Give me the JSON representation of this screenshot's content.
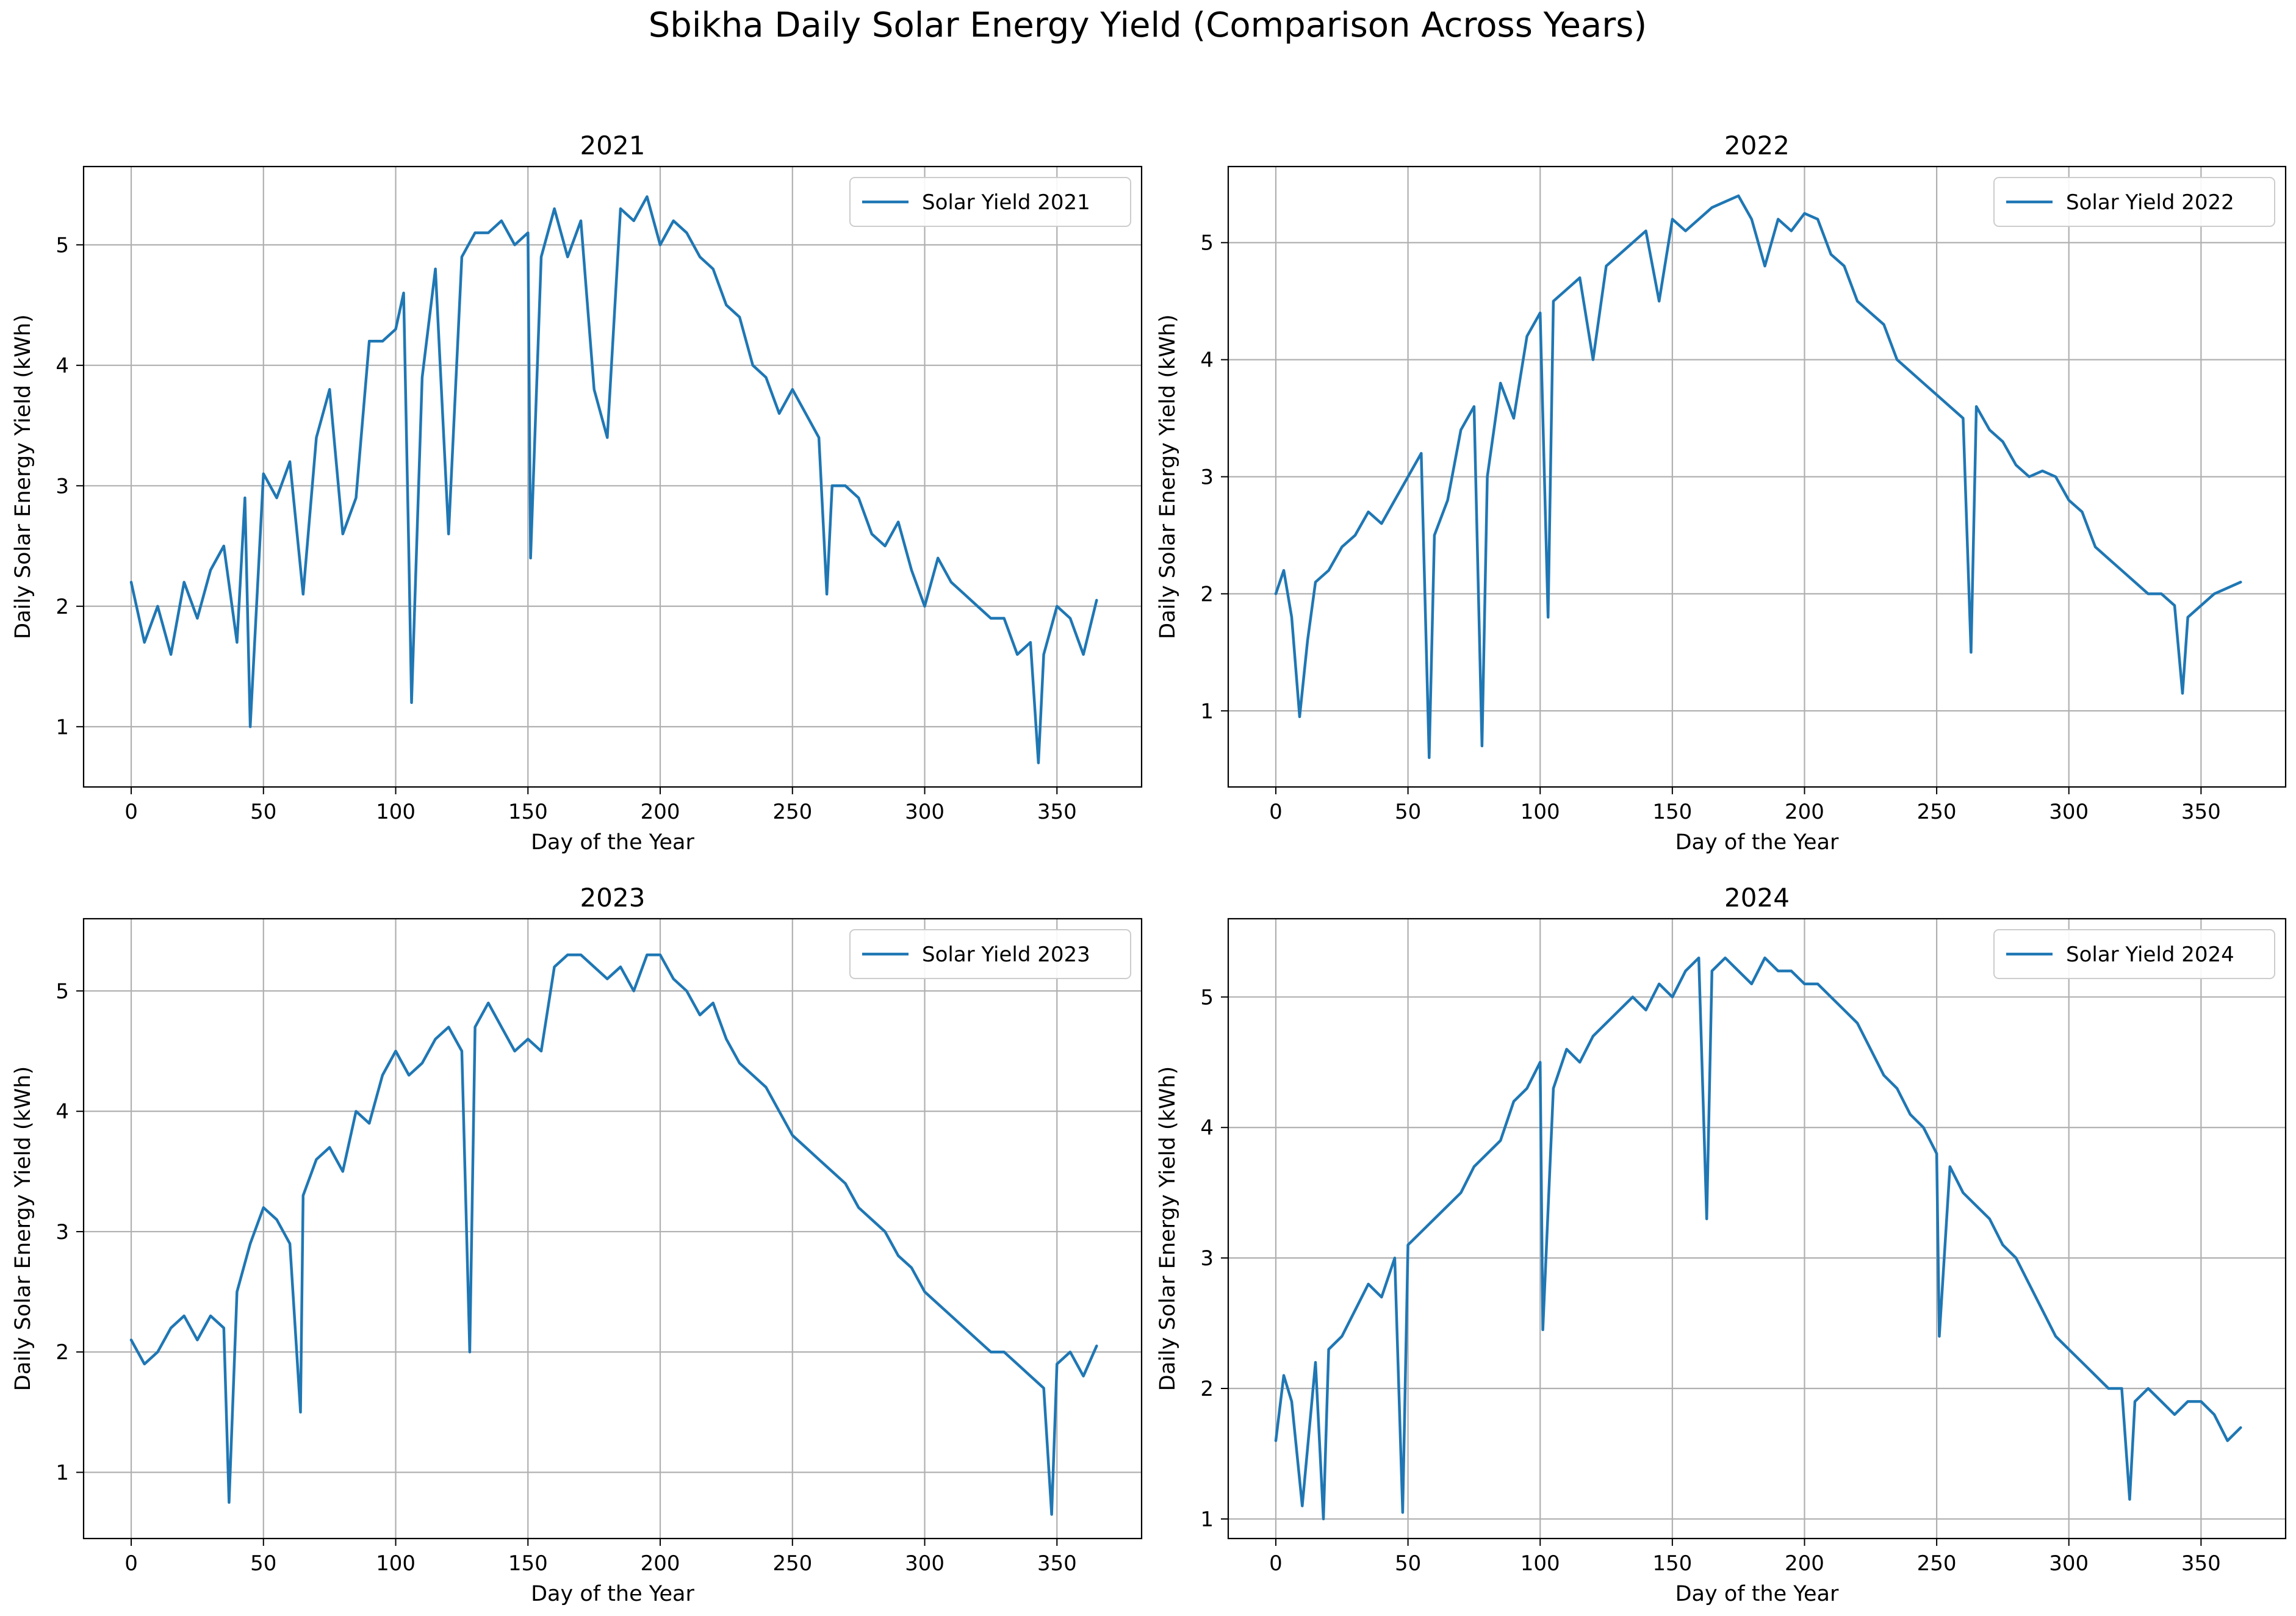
{
  "figure": {
    "suptitle": "Sbikha Daily Solar Energy Yield (Comparison Across Years)",
    "line_color": "#1f77b4",
    "grid_color": "#b0b0b0"
  },
  "chart_data": [
    {
      "type": "line",
      "title": "2021",
      "xlabel": "Day of the Year",
      "ylabel": "Daily Solar Energy Yield (kWh)",
      "xlim": [
        -18,
        382
      ],
      "ylim": [
        0.5,
        5.65
      ],
      "xticks": [
        0,
        50,
        100,
        150,
        200,
        250,
        300,
        350
      ],
      "yticks": [
        1,
        2,
        3,
        4,
        5
      ],
      "grid": true,
      "legend_position": "upper-right",
      "series": [
        {
          "name": "Solar Yield 2021",
          "x": [
            0,
            5,
            10,
            15,
            20,
            25,
            30,
            35,
            40,
            43,
            45,
            50,
            55,
            60,
            65,
            70,
            75,
            80,
            85,
            90,
            95,
            100,
            103,
            105,
            106,
            110,
            115,
            120,
            125,
            130,
            135,
            140,
            145,
            150,
            151,
            155,
            160,
            165,
            170,
            175,
            180,
            185,
            190,
            195,
            200,
            205,
            210,
            215,
            220,
            225,
            230,
            235,
            240,
            245,
            250,
            255,
            260,
            263,
            265,
            270,
            275,
            280,
            285,
            290,
            295,
            300,
            305,
            310,
            315,
            320,
            325,
            330,
            335,
            340,
            343,
            345,
            350,
            355,
            360,
            365
          ],
          "y": [
            2.2,
            1.7,
            2.0,
            1.6,
            2.2,
            1.9,
            2.3,
            2.5,
            1.7,
            2.9,
            1.0,
            3.1,
            2.9,
            3.2,
            2.1,
            3.4,
            3.8,
            2.6,
            2.9,
            4.2,
            4.2,
            4.3,
            4.6,
            2.4,
            1.2,
            3.9,
            4.8,
            2.6,
            4.9,
            5.1,
            5.1,
            5.2,
            5.0,
            5.1,
            2.4,
            4.9,
            5.3,
            4.9,
            5.2,
            3.8,
            3.4,
            5.3,
            5.2,
            5.4,
            5.0,
            5.2,
            5.1,
            4.9,
            4.8,
            4.5,
            4.4,
            4.0,
            3.9,
            3.6,
            3.8,
            3.6,
            3.4,
            2.1,
            3.0,
            3.0,
            2.9,
            2.6,
            2.5,
            2.7,
            2.3,
            2.0,
            2.4,
            2.2,
            2.1,
            2.0,
            1.9,
            1.9,
            1.6,
            1.7,
            0.7,
            1.6,
            2.0,
            1.9,
            1.6,
            2.05
          ]
        }
      ]
    },
    {
      "type": "line",
      "title": "2022",
      "xlabel": "Day of the Year",
      "ylabel": "Daily Solar Energy Yield (kWh)",
      "xlim": [
        -18,
        382
      ],
      "ylim": [
        0.35,
        5.65
      ],
      "xticks": [
        0,
        50,
        100,
        150,
        200,
        250,
        300,
        350
      ],
      "yticks": [
        1,
        2,
        3,
        4,
        5
      ],
      "grid": true,
      "legend_position": "upper-right",
      "series": [
        {
          "name": "Solar Yield 2022",
          "x": [
            0,
            3,
            6,
            9,
            12,
            15,
            20,
            25,
            30,
            35,
            40,
            45,
            50,
            55,
            58,
            60,
            65,
            70,
            75,
            78,
            80,
            85,
            90,
            95,
            100,
            103,
            105,
            110,
            115,
            120,
            125,
            130,
            135,
            140,
            145,
            150,
            155,
            160,
            165,
            170,
            175,
            180,
            185,
            190,
            195,
            200,
            205,
            210,
            215,
            220,
            225,
            230,
            235,
            240,
            245,
            250,
            255,
            260,
            263,
            265,
            270,
            275,
            280,
            285,
            290,
            295,
            300,
            305,
            310,
            315,
            320,
            325,
            330,
            335,
            340,
            343,
            345,
            350,
            355,
            360,
            365
          ],
          "y": [
            2.0,
            2.2,
            1.8,
            0.95,
            1.6,
            2.1,
            2.2,
            2.4,
            2.5,
            2.7,
            2.6,
            2.8,
            3.0,
            3.2,
            0.6,
            2.5,
            2.8,
            3.4,
            3.6,
            0.7,
            3.0,
            3.8,
            3.5,
            4.2,
            4.4,
            1.8,
            4.5,
            4.6,
            4.7,
            4.0,
            4.8,
            4.9,
            5.0,
            5.1,
            4.5,
            5.2,
            5.1,
            5.2,
            5.3,
            5.35,
            5.4,
            5.2,
            4.8,
            5.2,
            5.1,
            5.25,
            5.2,
            4.9,
            4.8,
            4.5,
            4.4,
            4.3,
            4.0,
            3.9,
            3.8,
            3.7,
            3.6,
            3.5,
            1.5,
            3.6,
            3.4,
            3.3,
            3.1,
            3.0,
            3.05,
            3.0,
            2.8,
            2.7,
            2.4,
            2.3,
            2.2,
            2.1,
            2.0,
            2.0,
            1.9,
            1.15,
            1.8,
            1.9,
            2.0,
            2.05,
            2.1
          ]
        }
      ]
    },
    {
      "type": "line",
      "title": "2023",
      "xlabel": "Day of the Year",
      "ylabel": "Daily Solar Energy Yield (kWh)",
      "xlim": [
        -18,
        382
      ],
      "ylim": [
        0.45,
        5.6
      ],
      "xticks": [
        0,
        50,
        100,
        150,
        200,
        250,
        300,
        350
      ],
      "yticks": [
        1,
        2,
        3,
        4,
        5
      ],
      "grid": true,
      "legend_position": "upper-right",
      "series": [
        {
          "name": "Solar Yield 2023",
          "x": [
            0,
            5,
            10,
            15,
            20,
            25,
            30,
            35,
            37,
            40,
            45,
            50,
            55,
            60,
            64,
            65,
            70,
            75,
            80,
            85,
            90,
            95,
            100,
            105,
            110,
            115,
            120,
            125,
            128,
            130,
            135,
            140,
            145,
            150,
            155,
            160,
            165,
            170,
            175,
            180,
            185,
            190,
            195,
            200,
            205,
            210,
            215,
            220,
            225,
            230,
            235,
            240,
            245,
            250,
            255,
            260,
            265,
            270,
            275,
            280,
            285,
            290,
            295,
            300,
            305,
            310,
            315,
            320,
            325,
            330,
            335,
            340,
            345,
            348,
            350,
            355,
            360,
            365
          ],
          "y": [
            2.1,
            1.9,
            2.0,
            2.2,
            2.3,
            2.1,
            2.3,
            2.2,
            0.75,
            2.5,
            2.9,
            3.2,
            3.1,
            2.9,
            1.5,
            3.3,
            3.6,
            3.7,
            3.5,
            4.0,
            3.9,
            4.3,
            4.5,
            4.3,
            4.4,
            4.6,
            4.7,
            4.5,
            2.0,
            4.7,
            4.9,
            4.7,
            4.5,
            4.6,
            4.5,
            5.2,
            5.3,
            5.3,
            5.2,
            5.1,
            5.2,
            5.0,
            5.3,
            5.3,
            5.1,
            5.0,
            4.8,
            4.9,
            4.6,
            4.4,
            4.3,
            4.2,
            4.0,
            3.8,
            3.7,
            3.6,
            3.5,
            3.4,
            3.2,
            3.1,
            3.0,
            2.8,
            2.7,
            2.5,
            2.4,
            2.3,
            2.2,
            2.1,
            2.0,
            2.0,
            1.9,
            1.8,
            1.7,
            0.65,
            1.9,
            2.0,
            1.8,
            2.05
          ]
        }
      ]
    },
    {
      "type": "line",
      "title": "2024",
      "xlabel": "Day of the Year",
      "ylabel": "Daily Solar Energy Yield (kWh)",
      "xlim": [
        -18,
        382
      ],
      "ylim": [
        0.85,
        5.6
      ],
      "xticks": [
        0,
        50,
        100,
        150,
        200,
        250,
        300,
        350
      ],
      "yticks": [
        1,
        2,
        3,
        4,
        5
      ],
      "grid": true,
      "legend_position": "upper-right",
      "series": [
        {
          "name": "Solar Yield 2024",
          "x": [
            0,
            3,
            6,
            10,
            15,
            18,
            20,
            25,
            30,
            35,
            40,
            45,
            48,
            50,
            55,
            60,
            65,
            70,
            75,
            80,
            85,
            90,
            95,
            100,
            101,
            105,
            110,
            115,
            120,
            125,
            130,
            135,
            140,
            145,
            150,
            155,
            160,
            163,
            165,
            170,
            175,
            180,
            185,
            190,
            195,
            200,
            205,
            210,
            215,
            220,
            225,
            230,
            235,
            240,
            245,
            250,
            251,
            255,
            260,
            265,
            270,
            275,
            280,
            285,
            290,
            295,
            300,
            305,
            310,
            315,
            320,
            323,
            325,
            330,
            335,
            340,
            345,
            350,
            355,
            360,
            365
          ],
          "y": [
            1.6,
            2.1,
            1.9,
            1.1,
            2.2,
            1.0,
            2.3,
            2.4,
            2.6,
            2.8,
            2.7,
            3.0,
            1.05,
            3.1,
            3.2,
            3.3,
            3.4,
            3.5,
            3.7,
            3.8,
            3.9,
            4.2,
            4.3,
            4.5,
            2.45,
            4.3,
            4.6,
            4.5,
            4.7,
            4.8,
            4.9,
            5.0,
            4.9,
            5.1,
            5.0,
            5.2,
            5.3,
            3.3,
            5.2,
            5.3,
            5.2,
            5.1,
            5.3,
            5.2,
            5.2,
            5.1,
            5.1,
            5.0,
            4.9,
            4.8,
            4.6,
            4.4,
            4.3,
            4.1,
            4.0,
            3.8,
            2.4,
            3.7,
            3.5,
            3.4,
            3.3,
            3.1,
            3.0,
            2.8,
            2.6,
            2.4,
            2.3,
            2.2,
            2.1,
            2.0,
            2.0,
            1.15,
            1.9,
            2.0,
            1.9,
            1.8,
            1.9,
            1.9,
            1.8,
            1.6,
            1.7
          ]
        }
      ]
    }
  ]
}
